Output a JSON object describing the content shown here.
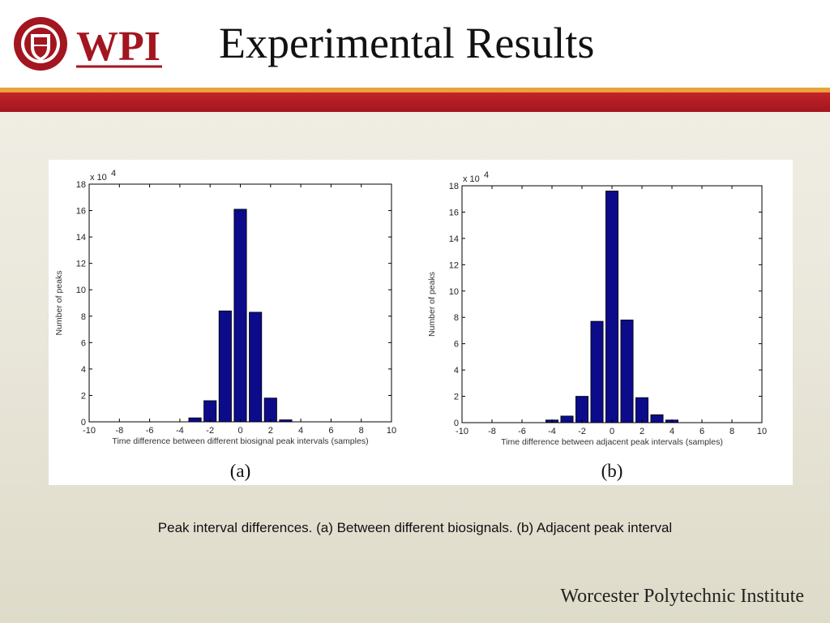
{
  "slide": {
    "title": "Experimental Results",
    "caption": "Peak interval differences. (a) Between different biosignals. (b) Adjacent peak interval",
    "footer": "Worcester Polytechnic Institute",
    "logo_text": "WPI"
  },
  "colors": {
    "bar": "#0c0c8a",
    "band_red": "#b01b22",
    "band_orange": "#e8a33a"
  },
  "chart_data": [
    {
      "type": "bar",
      "panel_label": "(a)",
      "x": [
        -3,
        -2,
        -1,
        0,
        1,
        2,
        3
      ],
      "values": [
        0.3,
        1.6,
        8.4,
        16.1,
        8.3,
        1.8,
        0.15
      ],
      "xlim": [
        -10,
        10
      ],
      "ylim": [
        0,
        18
      ],
      "xticks": [
        -10,
        -8,
        -6,
        -4,
        -2,
        0,
        2,
        4,
        6,
        8,
        10
      ],
      "yticks": [
        0,
        2,
        4,
        6,
        8,
        10,
        12,
        14,
        16,
        18
      ],
      "y_multiplier": "x 10",
      "y_multiplier_exp": "4",
      "xlabel": "Time difference between different biosignal peak intervals (samples)",
      "ylabel": "Number of peaks"
    },
    {
      "type": "bar",
      "panel_label": "(b)",
      "x": [
        -4,
        -3,
        -2,
        -1,
        0,
        1,
        2,
        3,
        4
      ],
      "values": [
        0.2,
        0.5,
        2.0,
        7.7,
        17.6,
        7.8,
        1.9,
        0.6,
        0.2
      ],
      "xlim": [
        -10,
        10
      ],
      "ylim": [
        0,
        18
      ],
      "xticks": [
        -10,
        -8,
        -6,
        -4,
        -2,
        0,
        2,
        4,
        6,
        8,
        10
      ],
      "yticks": [
        0,
        2,
        4,
        6,
        8,
        10,
        12,
        14,
        16,
        18
      ],
      "y_multiplier": "x 10",
      "y_multiplier_exp": "4",
      "xlabel": "Time difference between adjacent peak intervals (samples)",
      "ylabel": "Number of peaks"
    }
  ]
}
